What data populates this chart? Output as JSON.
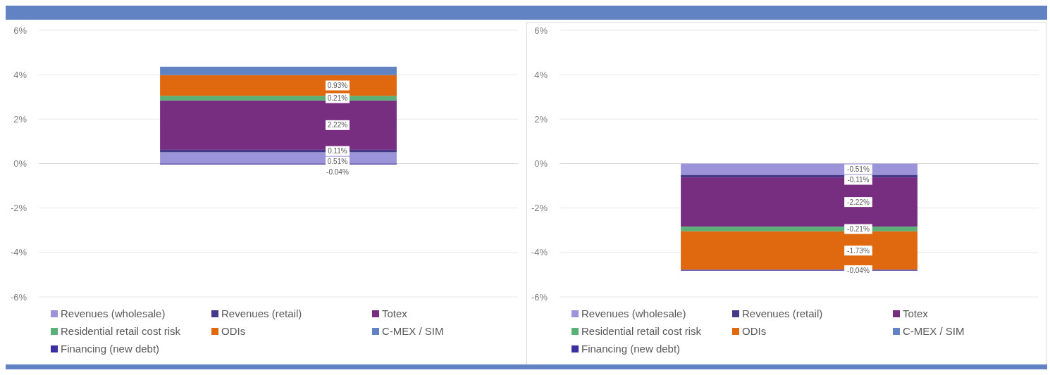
{
  "chart_data": [
    {
      "type": "bar",
      "stacked": true,
      "categories": [
        null
      ],
      "ylim": [
        -6,
        6
      ],
      "yticks": [
        {
          "value": 6,
          "label": "6%"
        },
        {
          "value": 4,
          "label": "4%"
        },
        {
          "value": 2,
          "label": "2%"
        },
        {
          "value": 0,
          "label": "0%"
        },
        {
          "value": -2,
          "label": "-2%"
        },
        {
          "value": -4,
          "label": "-4%"
        },
        {
          "value": -6,
          "label": "-6%"
        }
      ],
      "grid": "y",
      "legend": "bottom",
      "series": [
        {
          "name": "Revenues (wholesale)",
          "color": "#9b94d8",
          "values": [
            0.51
          ],
          "value_labels": [
            "0.51%"
          ]
        },
        {
          "name": "Revenues (retail)",
          "color": "#433a8a",
          "values": [
            0.11
          ],
          "value_labels": [
            "0.11%"
          ]
        },
        {
          "name": "Totex",
          "color": "#772e81",
          "values": [
            2.22
          ],
          "value_labels": [
            "2.22%"
          ]
        },
        {
          "name": "Residential retail cost risk",
          "color": "#5bb077",
          "values": [
            0.21
          ],
          "value_labels": [
            "0.21%"
          ]
        },
        {
          "name": "ODIs",
          "color": "#e0680f",
          "values": [
            0.93
          ],
          "value_labels": [
            "0.93%"
          ]
        },
        {
          "name": "C-MEX / SIM",
          "color": "#6183c3",
          "values": [
            0.38
          ],
          "value_labels": [
            null
          ]
        },
        {
          "name": "Financing (new debt)",
          "color": "#3c30a0",
          "values": [
            -0.04
          ],
          "value_labels": [
            "-0.04%"
          ]
        }
      ]
    },
    {
      "type": "bar",
      "stacked": true,
      "categories": [
        null
      ],
      "ylim": [
        -6,
        6
      ],
      "yticks": [
        {
          "value": 6,
          "label": "6%"
        },
        {
          "value": 4,
          "label": "4%"
        },
        {
          "value": 2,
          "label": "2%"
        },
        {
          "value": 0,
          "label": "0%"
        },
        {
          "value": -2,
          "label": "-2%"
        },
        {
          "value": -4,
          "label": "-4%"
        },
        {
          "value": -6,
          "label": "-6%"
        }
      ],
      "grid": "y",
      "legend": "bottom",
      "series": [
        {
          "name": "Revenues (wholesale)",
          "color": "#9b94d8",
          "values": [
            -0.51
          ],
          "value_labels": [
            "-0.51%"
          ]
        },
        {
          "name": "Revenues (retail)",
          "color": "#433a8a",
          "values": [
            -0.11
          ],
          "value_labels": [
            "-0.11%"
          ]
        },
        {
          "name": "Totex",
          "color": "#772e81",
          "values": [
            -2.22
          ],
          "value_labels": [
            "-2.22%"
          ]
        },
        {
          "name": "Residential retail cost risk",
          "color": "#5bb077",
          "values": [
            -0.21
          ],
          "value_labels": [
            "-0.21%"
          ]
        },
        {
          "name": "ODIs",
          "color": "#e0680f",
          "values": [
            -1.73
          ],
          "value_labels": [
            "-1.73%"
          ]
        },
        {
          "name": "C-MEX / SIM",
          "color": "#6183c3",
          "values": [
            null
          ],
          "value_labels": [
            null
          ]
        },
        {
          "name": "Financing (new debt)",
          "color": "#3c30a0",
          "values": [
            -0.04
          ],
          "value_labels": [
            "-0.04%"
          ]
        }
      ]
    }
  ]
}
